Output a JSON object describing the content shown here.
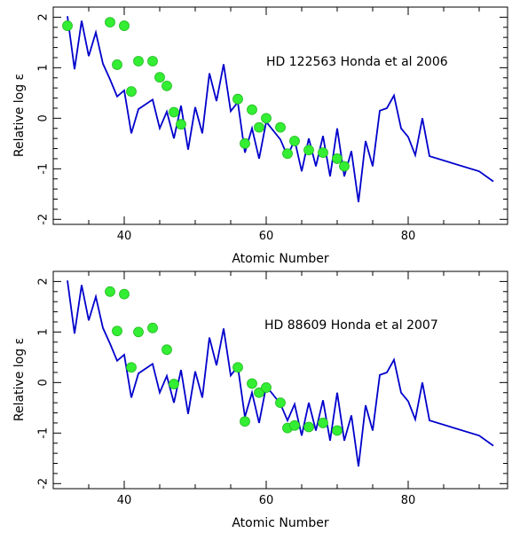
{
  "chart_data": [
    {
      "type": "line+scatter",
      "annotation": "HD 122563 Honda et al 2006",
      "xlabel": "Atomic Number",
      "ylabel": "Relative log ε",
      "xlim": [
        30,
        94
      ],
      "ylim": [
        -2.1,
        2.2
      ],
      "xticks": [
        40,
        60,
        80
      ],
      "yticks": [
        -2,
        -1,
        0,
        1,
        2
      ],
      "grid": false,
      "line_color": "#0000cc",
      "marker_color": "#33ee33",
      "line": {
        "x": [
          32,
          33,
          34,
          35,
          36,
          37,
          38,
          39,
          40,
          41,
          42,
          44,
          45,
          46,
          47,
          48,
          49,
          50,
          51,
          52,
          53,
          54,
          55,
          56,
          57,
          58,
          59,
          60,
          62,
          63,
          64,
          65,
          66,
          67,
          68,
          69,
          70,
          71,
          72,
          73,
          74,
          75,
          76,
          77,
          78,
          79,
          80,
          81,
          82,
          83,
          90,
          92
        ],
        "y": [
          2.02,
          0.97,
          1.93,
          1.23,
          1.7,
          1.08,
          0.77,
          0.43,
          0.55,
          -0.3,
          0.18,
          0.37,
          -0.2,
          0.13,
          -0.4,
          0.25,
          -0.62,
          0.22,
          -0.3,
          0.89,
          0.34,
          1.07,
          0.14,
          0.32,
          -0.68,
          -0.2,
          -0.8,
          -0.07,
          -0.42,
          -0.75,
          -0.43,
          -1.05,
          -0.4,
          -0.95,
          -0.35,
          -1.15,
          -0.2,
          -1.15,
          -0.65,
          -1.66,
          -0.45,
          -0.95,
          0.15,
          0.2,
          0.45,
          -0.2,
          -0.37,
          -0.73,
          0.0,
          -0.75,
          -1.05,
          -1.25
        ]
      },
      "points": {
        "x": [
          32,
          38,
          40,
          39,
          41,
          42,
          44,
          45,
          46,
          47,
          48,
          56,
          57,
          58,
          59,
          60,
          62,
          63,
          64,
          66,
          68,
          70,
          71
        ],
        "y": [
          1.83,
          1.9,
          1.83,
          1.06,
          0.53,
          1.13,
          1.13,
          0.81,
          0.64,
          0.12,
          -0.12,
          0.38,
          -0.5,
          0.17,
          -0.18,
          0.0,
          -0.18,
          -0.7,
          -0.45,
          -0.63,
          -0.68,
          -0.8,
          -0.95
        ]
      }
    },
    {
      "type": "line+scatter",
      "annotation": "HD 88609 Honda et al 2007",
      "xlabel": "Atomic Number",
      "ylabel": "Relative log ε",
      "xlim": [
        30,
        94
      ],
      "ylim": [
        -2.1,
        2.2
      ],
      "xticks": [
        40,
        60,
        80
      ],
      "yticks": [
        -2,
        -1,
        0,
        1,
        2
      ],
      "grid": false,
      "line_color": "#0000cc",
      "marker_color": "#33ee33",
      "line": {
        "x": [
          32,
          33,
          34,
          35,
          36,
          37,
          38,
          39,
          40,
          41,
          42,
          44,
          45,
          46,
          47,
          48,
          49,
          50,
          51,
          52,
          53,
          54,
          55,
          56,
          57,
          58,
          59,
          60,
          62,
          63,
          64,
          65,
          66,
          67,
          68,
          69,
          70,
          71,
          72,
          73,
          74,
          75,
          76,
          77,
          78,
          79,
          80,
          81,
          82,
          83,
          90,
          92
        ],
        "y": [
          2.02,
          0.97,
          1.93,
          1.23,
          1.7,
          1.08,
          0.77,
          0.43,
          0.55,
          -0.3,
          0.18,
          0.37,
          -0.2,
          0.13,
          -0.4,
          0.25,
          -0.62,
          0.22,
          -0.3,
          0.89,
          0.34,
          1.07,
          0.14,
          0.32,
          -0.68,
          -0.2,
          -0.8,
          -0.07,
          -0.42,
          -0.75,
          -0.43,
          -1.05,
          -0.4,
          -0.95,
          -0.35,
          -1.15,
          -0.2,
          -1.15,
          -0.65,
          -1.66,
          -0.45,
          -0.95,
          0.15,
          0.2,
          0.45,
          -0.2,
          -0.37,
          -0.73,
          0.0,
          -0.75,
          -1.05,
          -1.25
        ]
      },
      "points": {
        "x": [
          38,
          40,
          39,
          41,
          42,
          44,
          46,
          47,
          56,
          57,
          58,
          59,
          60,
          62,
          63,
          64,
          66,
          68,
          70
        ],
        "y": [
          1.8,
          1.75,
          1.02,
          0.3,
          1.0,
          1.08,
          0.65,
          -0.03,
          0.3,
          -0.77,
          -0.02,
          -0.2,
          -0.1,
          -0.4,
          -0.9,
          -0.85,
          -0.88,
          -0.8,
          -0.95
        ]
      }
    }
  ]
}
